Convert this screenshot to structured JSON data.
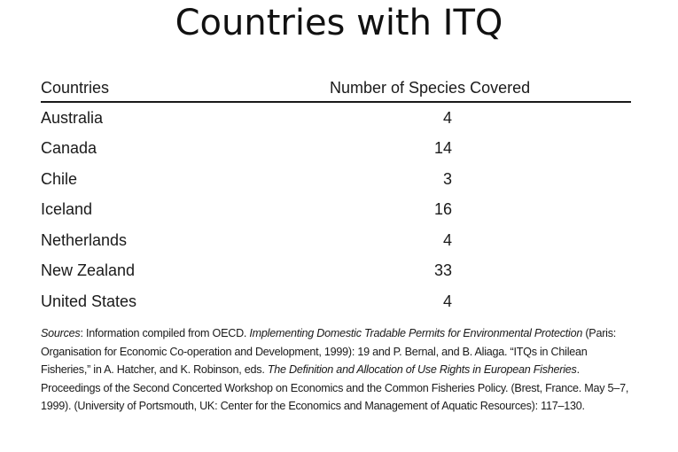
{
  "title": "Countries with ITQ",
  "table": {
    "headers": [
      "Countries",
      "Number of Species Covered"
    ],
    "rows": [
      {
        "country": "Australia",
        "species": "4"
      },
      {
        "country": "Canada",
        "species": "14"
      },
      {
        "country": "Chile",
        "species": "3"
      },
      {
        "country": "Iceland",
        "species": "16"
      },
      {
        "country": "Netherlands",
        "species": "4"
      },
      {
        "country": "New Zealand",
        "species": "33"
      },
      {
        "country": "United States",
        "species": "4"
      }
    ]
  },
  "sources": {
    "label": "Sources",
    "p1": ": Information compiled from OECD. ",
    "i1": "Implementing Domestic Tradable Permits for Environmental Protection",
    "p2": " (Paris: Organisation for Economic Co-operation and Development, 1999): 19 and P. Bernal, and B. Aliaga. “ITQs in Chilean Fisheries,” in A. Hatcher, and K. Robinson, eds. ",
    "i2": "The Definition and Allocation of Use Rights in European Fisheries",
    "p3": ". Proceedings of the Second Concerted Workshop on Economics and the Common Fisheries Policy. (Brest, France. May 5–7, 1999). (University of Portsmouth, UK: Center for the Economics and Management of Aquatic Resources): 117–130."
  }
}
